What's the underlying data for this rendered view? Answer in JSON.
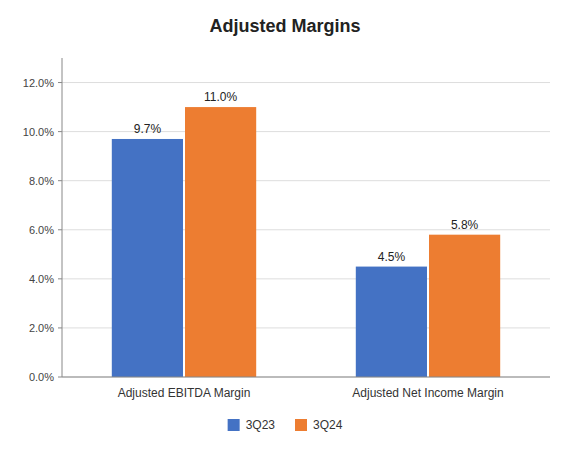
{
  "chart_data": {
    "type": "bar",
    "title": "Adjusted Margins",
    "categories": [
      "Adjusted EBITDA Margin",
      "Adjusted Net Income Margin"
    ],
    "series": [
      {
        "name": "3Q23",
        "color": "#4472C4",
        "values": [
          0.097,
          0.045
        ],
        "value_labels": [
          "9.7%",
          "4.5%"
        ]
      },
      {
        "name": "3Q24",
        "color": "#ED7D31",
        "values": [
          0.11,
          0.058
        ],
        "value_labels": [
          "11.0%",
          "5.8%"
        ]
      }
    ],
    "ylim": [
      0,
      0.13
    ],
    "yticks": [
      {
        "value": 0.0,
        "label": "0.0%"
      },
      {
        "value": 0.02,
        "label": "2.0%"
      },
      {
        "value": 0.04,
        "label": "4.0%"
      },
      {
        "value": 0.06,
        "label": "6.0%"
      },
      {
        "value": 0.08,
        "label": "8.0%"
      },
      {
        "value": 0.1,
        "label": "10.0%"
      },
      {
        "value": 0.12,
        "label": "12.0%"
      }
    ],
    "grid": true,
    "legend": "bottom",
    "data_labels": true
  }
}
